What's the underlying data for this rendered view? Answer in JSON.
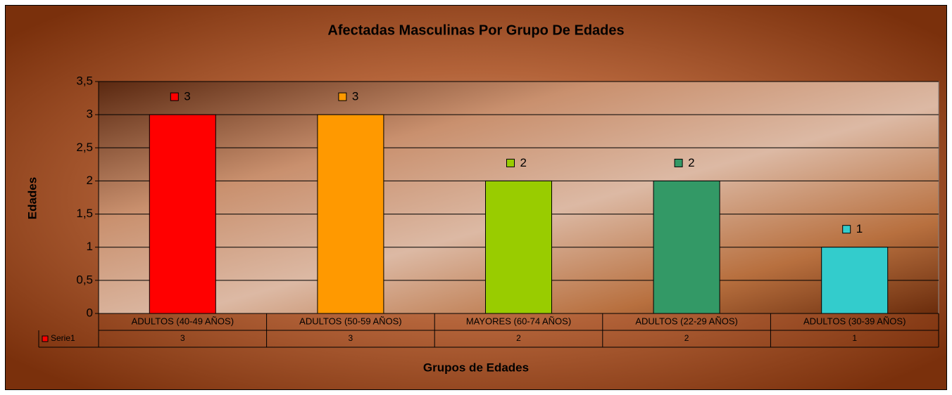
{
  "chart_data": {
    "type": "bar",
    "title": "Afectadas Masculinas Por Grupo De Edades",
    "x_label": "Grupos de Edades",
    "y_label": "Edades",
    "categories": [
      "ADULTOS (40-49 AÑOS)",
      "ADULTOS (50-59 AÑOS)",
      "MAYORES (60-74 AÑOS)",
      "ADULTOS (22-29 AÑOS)",
      "ADULTOS (30-39 AÑOS)"
    ],
    "series": [
      {
        "name": "Serie1",
        "color": "#ff0000",
        "colors": [
          "#ff0000",
          "#ff9900",
          "#99cc00",
          "#339966",
          "#33cccc"
        ],
        "values": [
          3,
          3,
          2,
          2,
          1
        ]
      }
    ],
    "ylim": [
      0,
      3.5
    ],
    "yticks": [
      0,
      {
        "value": 0.5,
        "label": "0,5"
      },
      1,
      {
        "value": 1.5,
        "label": "1,5"
      },
      2,
      {
        "value": 2.5,
        "label": "2,5"
      },
      3,
      {
        "value": 3.5,
        "label": "3,5"
      }
    ],
    "grid": true,
    "data_table": true
  }
}
